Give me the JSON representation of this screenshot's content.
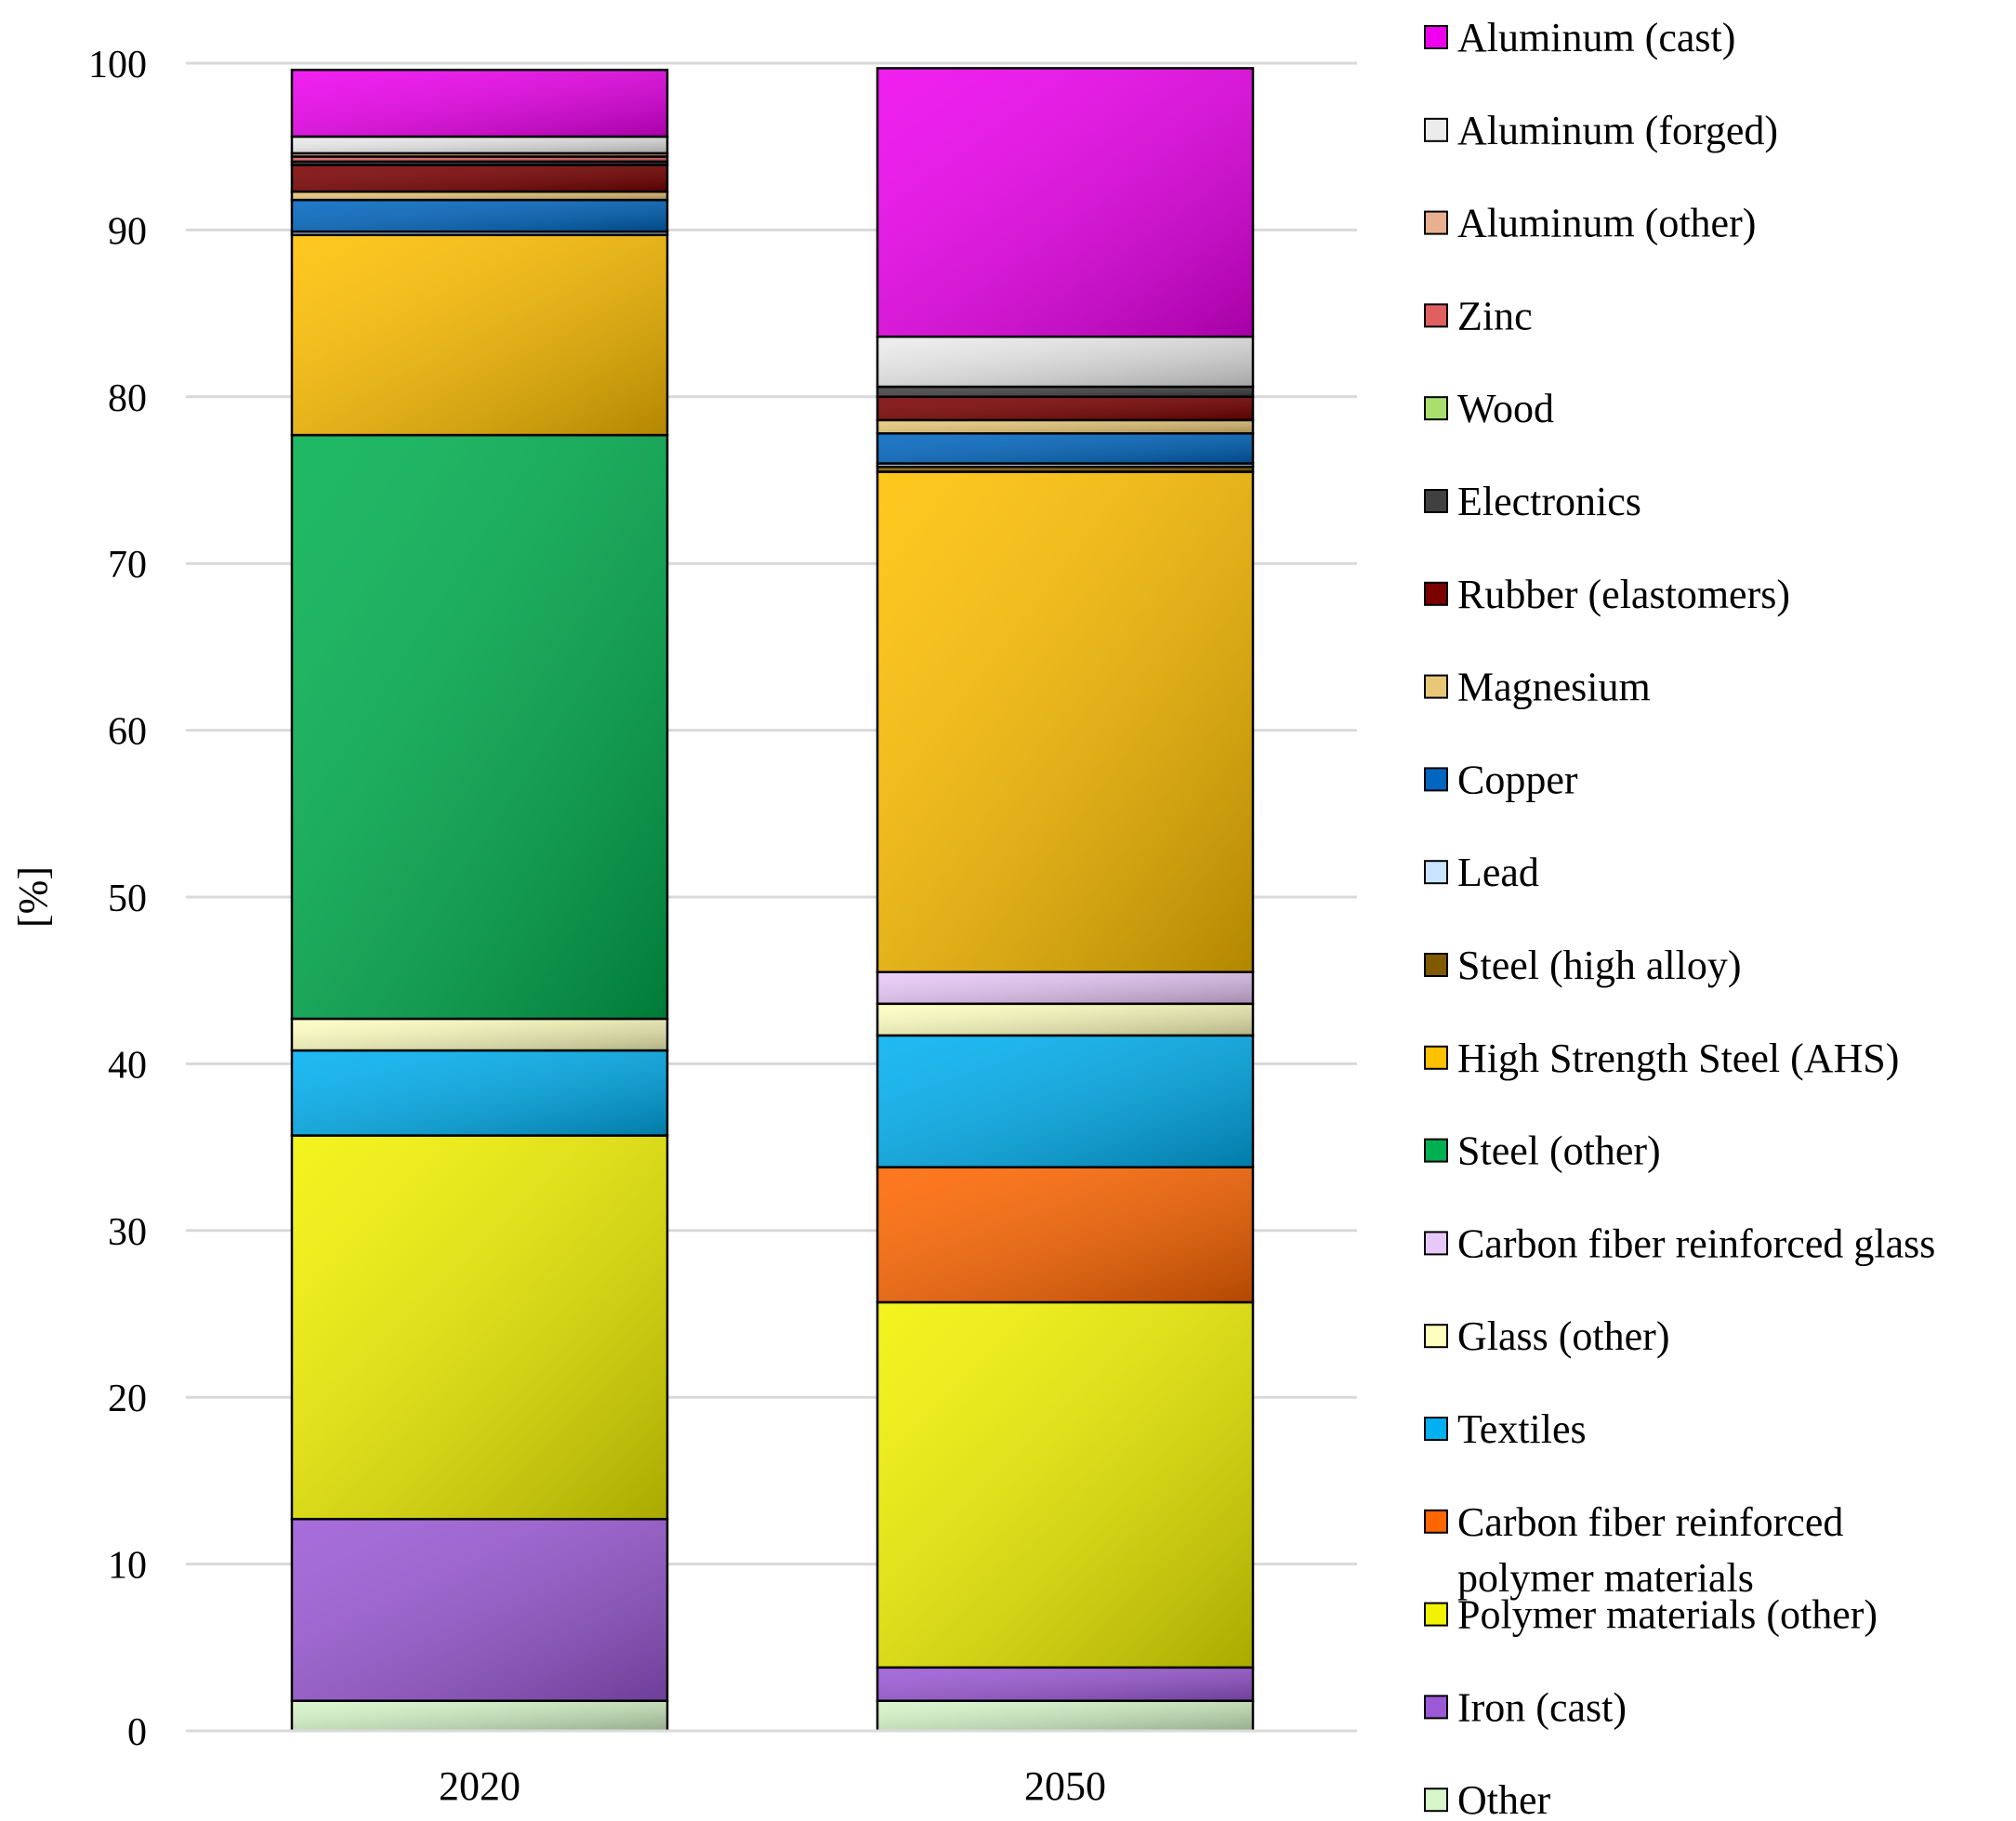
{
  "chart_data": {
    "type": "bar",
    "stacked": true,
    "title": "",
    "xlabel": "",
    "ylabel": "[%]",
    "ylim": [
      0,
      100
    ],
    "yticks": [
      0,
      10,
      20,
      30,
      40,
      50,
      60,
      70,
      80,
      90,
      100
    ],
    "grid": true,
    "legend_position": "right",
    "categories": [
      "2020",
      "2050"
    ],
    "series": [
      {
        "name": "Other",
        "color": "#d6f5c8",
        "values": [
          1.8,
          1.8
        ]
      },
      {
        "name": "Iron (cast)",
        "color": "#9b59d6",
        "values": [
          10.9,
          2.0
        ]
      },
      {
        "name": "Polymer materials (other)",
        "color": "#f2f200",
        "values": [
          23.0,
          21.9
        ]
      },
      {
        "name": "Carbon fiber reinforced polymer materials",
        "color": "#ff6600",
        "values": [
          0.0,
          8.1
        ]
      },
      {
        "name": "Textiles",
        "color": "#00b0f0",
        "values": [
          5.1,
          7.9
        ]
      },
      {
        "name": "Glass (other)",
        "color": "#ffffc0",
        "values": [
          1.9,
          1.9
        ]
      },
      {
        "name": "Carbon fiber reinforced glass",
        "color": "#e8c8f8",
        "values": [
          0.0,
          1.9
        ]
      },
      {
        "name": "Steel (other)",
        "color": "#00b050",
        "values": [
          35.0,
          0.0
        ]
      },
      {
        "name": "High Strength Steel (AHS)",
        "color": "#ffc000",
        "values": [
          12.0,
          30.0
        ]
      },
      {
        "name": "Steel (high alloy)",
        "color": "#7f5a00",
        "values": [
          0.0,
          0.3
        ]
      },
      {
        "name": "Lead",
        "color": "#c8e4ff",
        "values": [
          0.2,
          0.2
        ]
      },
      {
        "name": "Copper",
        "color": "#0066c0",
        "values": [
          1.9,
          1.8
        ]
      },
      {
        "name": "Magnesium",
        "color": "#e8c878",
        "values": [
          0.5,
          0.8
        ]
      },
      {
        "name": "Rubber (elastomers)",
        "color": "#7a0000",
        "values": [
          1.6,
          1.4
        ]
      },
      {
        "name": "Electronics",
        "color": "#404040",
        "values": [
          0.2,
          0.6
        ]
      },
      {
        "name": "Wood",
        "color": "#a8e070",
        "values": [
          0.0,
          0.0
        ]
      },
      {
        "name": "Zinc",
        "color": "#e06060",
        "values": [
          0.3,
          0.0
        ]
      },
      {
        "name": "Aluminum (other)",
        "color": "#e8b090",
        "values": [
          0.2,
          0.0
        ]
      },
      {
        "name": "Aluminum (forged)",
        "color": "#ececec",
        "values": [
          1.0,
          3.0
        ]
      },
      {
        "name": "Aluminum (cast)",
        "color": "#ee00ee",
        "values": [
          4.0,
          16.1
        ]
      }
    ],
    "legend": [
      {
        "label": "Aluminum (cast)",
        "color": "#ee00ee"
      },
      {
        "label": "Aluminum (forged)",
        "color": "#ececec"
      },
      {
        "label": "Aluminum (other)",
        "color": "#e8b090"
      },
      {
        "label": "Zinc",
        "color": "#e06060"
      },
      {
        "label": "Wood",
        "color": "#a8e070"
      },
      {
        "label": "Electronics",
        "color": "#404040"
      },
      {
        "label": "Rubber (elastomers)",
        "color": "#7a0000"
      },
      {
        "label": "Magnesium",
        "color": "#e8c878"
      },
      {
        "label": "Copper",
        "color": "#0066c0"
      },
      {
        "label": "Lead",
        "color": "#c8e4ff"
      },
      {
        "label": "Steel (high alloy)",
        "color": "#7f5a00"
      },
      {
        "label": "High Strength Steel (AHS)",
        "color": "#ffc000"
      },
      {
        "label": "Steel (other)",
        "color": "#00b050"
      },
      {
        "label": "Carbon fiber reinforced glass",
        "color": "#e8c8f8"
      },
      {
        "label": "Glass (other)",
        "color": "#ffffc0"
      },
      {
        "label": "Textiles",
        "color": "#00b0f0"
      },
      {
        "label": "Carbon fiber reinforced polymer materials",
        "label_lines": [
          "Carbon fiber reinforced",
          "polymer materials"
        ],
        "color": "#ff6600"
      },
      {
        "label": "Polymer materials (other)",
        "color": "#f2f200"
      },
      {
        "label": "Iron (cast)",
        "color": "#9b59d6"
      },
      {
        "label": "Other",
        "color": "#d6f5c8"
      }
    ]
  }
}
